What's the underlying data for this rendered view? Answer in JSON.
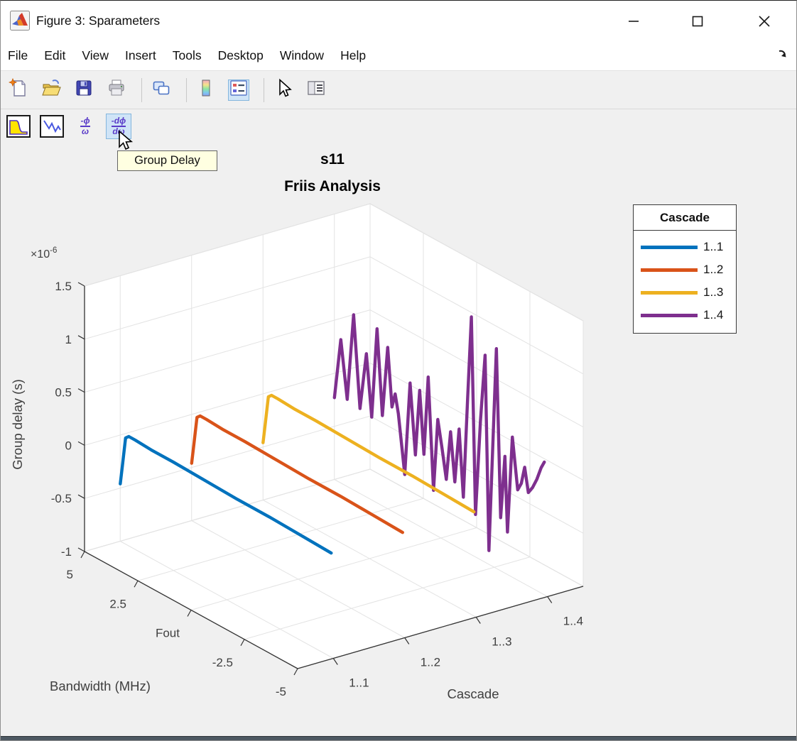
{
  "window": {
    "title": "Figure 3: Sparameters",
    "controls": [
      {
        "name": "minimize"
      },
      {
        "name": "maximize"
      },
      {
        "name": "close"
      }
    ]
  },
  "menu": {
    "items": [
      "File",
      "Edit",
      "View",
      "Insert",
      "Tools",
      "Desktop",
      "Window",
      "Help"
    ]
  },
  "toolbar_main": {
    "buttons": [
      {
        "name": "new-figure",
        "sep_after": false,
        "active": false
      },
      {
        "name": "open-file",
        "sep_after": false,
        "active": false
      },
      {
        "name": "save-figure",
        "sep_after": false,
        "active": false
      },
      {
        "name": "print-figure",
        "sep_after": true,
        "active": false
      },
      {
        "name": "link-plot",
        "sep_after": true,
        "active": false
      },
      {
        "name": "insert-colorbar",
        "sep_after": false,
        "active": false
      },
      {
        "name": "insert-legend",
        "sep_after": true,
        "active": true
      },
      {
        "name": "edit-plot",
        "sep_after": false,
        "active": false
      },
      {
        "name": "property-inspector",
        "sep_after": false,
        "active": false
      }
    ]
  },
  "toolbar_rf": {
    "buttons": [
      {
        "name": "magnitude-response",
        "active": false
      },
      {
        "name": "phase-response",
        "active": false
      },
      {
        "name": "phase-delay",
        "active": false,
        "top": "-ϕ",
        "bottom": "ω"
      },
      {
        "name": "group-delay",
        "active": true,
        "top": "-dϕ",
        "bottom": "dω"
      }
    ],
    "tooltip": "Group Delay"
  },
  "colors": {
    "highlight_bg": "#cfe4f7",
    "highlight_border": "#84b6dd",
    "tooltip_bg": "#ffffe1",
    "axis": "#333333",
    "grid": "#e3e3e3",
    "tick_text": "#3f3f3f"
  },
  "chart_data": {
    "type": "line",
    "subtype": "3d-waterfall-lines",
    "title_lines": [
      "s11",
      "Friis Analysis"
    ],
    "xlabel": "Bandwidth (MHz)",
    "ylabel": "Cascade",
    "zlabel": "Group delay (s)",
    "z_exponent": {
      "base": "×10",
      "exp": "-6"
    },
    "x_range": [
      5,
      -5
    ],
    "y_range": [
      0.5,
      4.5
    ],
    "z_range": [
      -1,
      1.5
    ],
    "grid": true,
    "x_ticks": [
      {
        "v": 5,
        "label": "5"
      },
      {
        "v": 2.5,
        "label": "2.5"
      },
      {
        "v": 0,
        "label": "Fout"
      },
      {
        "v": -2.5,
        "label": "-2.5"
      },
      {
        "v": -5,
        "label": "-5"
      }
    ],
    "y_ticks": [
      {
        "v": 1,
        "label": "1..1"
      },
      {
        "v": 2,
        "label": "1..2"
      },
      {
        "v": 3,
        "label": "1..3"
      },
      {
        "v": 4,
        "label": "1..4"
      }
    ],
    "z_ticks": [
      {
        "v": -1,
        "label": "-1"
      },
      {
        "v": -0.5,
        "label": "-0.5"
      },
      {
        "v": 0,
        "label": "0"
      },
      {
        "v": 0.5,
        "label": "0.5"
      },
      {
        "v": 1,
        "label": "1"
      },
      {
        "v": 1.5,
        "label": "1.5"
      }
    ],
    "legend": {
      "title": "Cascade",
      "position": "upper-right",
      "entries": [
        {
          "label": "1..1",
          "color": "#0072BD"
        },
        {
          "label": "1..2",
          "color": "#D95319"
        },
        {
          "label": "1..3",
          "color": "#EDB120"
        },
        {
          "label": "1..4",
          "color": "#7E2F8E"
        }
      ]
    },
    "series": [
      {
        "name": "1..1",
        "y": 1,
        "color": "#0072BD",
        "points": [
          [
            5,
            -0.46
          ],
          [
            4.9,
            -0.28
          ],
          [
            4.75,
            0.0
          ],
          [
            4.6,
            0.03
          ],
          [
            4.3,
            0.03
          ],
          [
            3.5,
            0.02
          ],
          [
            2.5,
            0.02
          ],
          [
            1,
            0.01
          ],
          [
            -0.5,
            0.0
          ],
          [
            -2,
            0.0
          ],
          [
            -3.5,
            -0.01
          ],
          [
            -4.9,
            -0.02
          ]
        ]
      },
      {
        "name": "1..2",
        "y": 2,
        "color": "#D95319",
        "points": [
          [
            5,
            -0.46
          ],
          [
            4.9,
            -0.28
          ],
          [
            4.75,
            0.0
          ],
          [
            4.6,
            0.03
          ],
          [
            4.3,
            0.03
          ],
          [
            3.5,
            0.02
          ],
          [
            2.5,
            0.02
          ],
          [
            1,
            0.01
          ],
          [
            -0.5,
            0.0
          ],
          [
            -2,
            0.0
          ],
          [
            -3.5,
            -0.01
          ],
          [
            -4.9,
            -0.02
          ]
        ]
      },
      {
        "name": "1..3",
        "y": 3,
        "color": "#EDB120",
        "points": [
          [
            5,
            -0.46
          ],
          [
            4.9,
            -0.28
          ],
          [
            4.75,
            0.0
          ],
          [
            4.6,
            0.03
          ],
          [
            4.3,
            0.03
          ],
          [
            3.5,
            0.02
          ],
          [
            2.5,
            0.02
          ],
          [
            1,
            0.01
          ],
          [
            -0.5,
            0.0
          ],
          [
            -2,
            0.0
          ],
          [
            -3.5,
            -0.01
          ],
          [
            -4.9,
            -0.02
          ]
        ]
      },
      {
        "name": "1..4",
        "y": 4,
        "color": "#7E2F8E",
        "points": [
          [
            5,
            -0.23
          ],
          [
            4.7,
            0.35
          ],
          [
            4.4,
            -0.18
          ],
          [
            4.1,
            0.65
          ],
          [
            3.8,
            -0.2
          ],
          [
            3.5,
            0.35
          ],
          [
            3.25,
            -0.22
          ],
          [
            3.0,
            0.64
          ],
          [
            2.75,
            -0.15
          ],
          [
            2.5,
            0.52
          ],
          [
            2.3,
            -0.02
          ],
          [
            2.15,
            0.12
          ],
          [
            2.0,
            -0.05
          ],
          [
            1.7,
            -0.59
          ],
          [
            1.45,
            0.3
          ],
          [
            1.2,
            -0.35
          ],
          [
            1.0,
            0.28
          ],
          [
            0.8,
            -0.3
          ],
          [
            0.6,
            0.45
          ],
          [
            0.35,
            -0.59
          ],
          [
            0.15,
            0.1
          ],
          [
            -0.05,
            -0.15
          ],
          [
            -0.25,
            -0.42
          ],
          [
            -0.45,
            0.05
          ],
          [
            -0.65,
            -0.4
          ],
          [
            -0.85,
            0.12
          ],
          [
            -1.05,
            -0.5
          ],
          [
            -1.25,
            0.45
          ],
          [
            -1.43,
            1.24
          ],
          [
            -1.62,
            -0.6
          ],
          [
            -1.85,
            0.3
          ],
          [
            -2.07,
            0.95
          ],
          [
            -2.25,
            -0.87
          ],
          [
            -2.6,
            1.07
          ],
          [
            -2.8,
            -0.5
          ],
          [
            -3.0,
            0.1
          ],
          [
            -3.12,
            -0.6
          ],
          [
            -3.35,
            0.32
          ],
          [
            -3.6,
            -0.15
          ],
          [
            -3.77,
            -0.07
          ],
          [
            -3.93,
            0.1
          ],
          [
            -4.1,
            -0.12
          ],
          [
            -4.3,
            -0.05
          ],
          [
            -4.5,
            0.05
          ],
          [
            -4.7,
            0.18
          ],
          [
            -4.85,
            0.25
          ]
        ]
      }
    ]
  }
}
